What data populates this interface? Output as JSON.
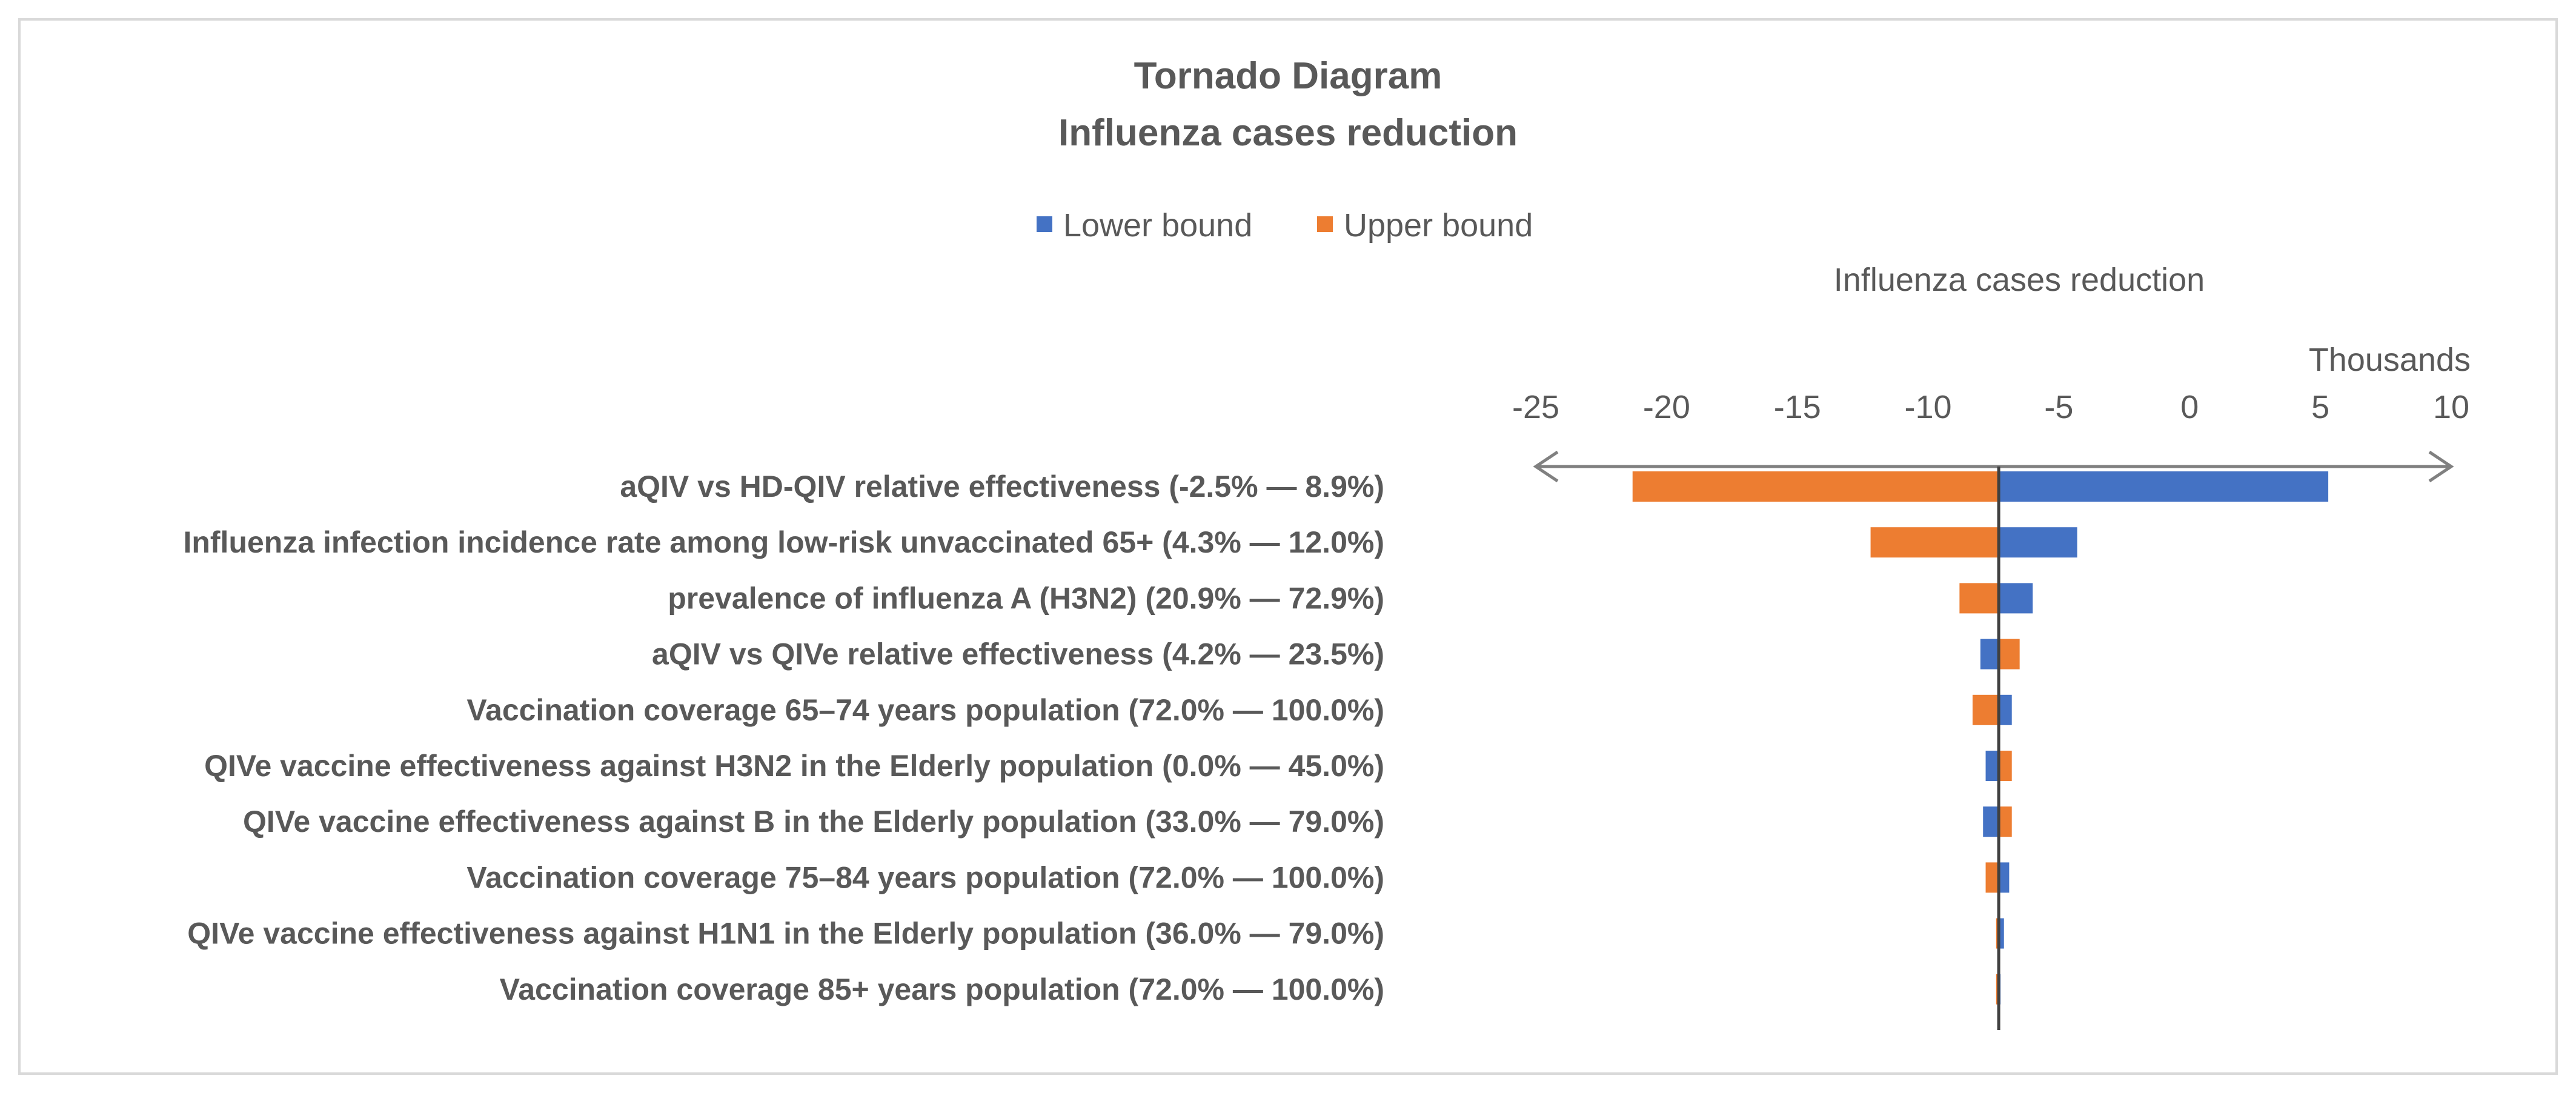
{
  "chart_data": {
    "type": "bar",
    "orientation": "horizontal",
    "subtype": "tornado",
    "title": "Tornado Diagram",
    "subtitle": "Influenza cases reduction",
    "axis_title": "Influenza cases reduction",
    "axis_units": "Thousands",
    "xlim": [
      -25,
      10
    ],
    "base_value": -7.3,
    "x_ticks": [
      -25,
      -20,
      -15,
      -10,
      -5,
      0,
      5,
      10
    ],
    "x_tick_labels": [
      "-25",
      "-20",
      "-15",
      "-10",
      "-5",
      "0",
      "5",
      "10"
    ],
    "legend": {
      "position": "top",
      "entries": [
        "Lower bound",
        "Upper bound"
      ]
    },
    "series": [
      {
        "name": "Lower bound",
        "color": "#4472C4",
        "values": [
          5.3,
          -4.3,
          -6.0,
          -8.0,
          -6.8,
          -7.8,
          -7.9,
          -6.9,
          -7.1,
          -7.3
        ]
      },
      {
        "name": "Upper bound",
        "color": "#ED7D31",
        "values": [
          -21.3,
          -12.2,
          -8.8,
          -6.5,
          -8.3,
          -6.8,
          -6.8,
          -7.8,
          -7.4,
          -7.4
        ]
      }
    ],
    "categories": [
      "aQIV vs HD-QIV relative effectiveness (-2.5% — 8.9%)",
      "Influenza infection incidence rate among low-risk unvaccinated 65+ (4.3% — 12.0%)",
      "prevalence of influenza A (H3N2) (20.9% — 72.9%)",
      "aQIV vs QIVe relative effectiveness (4.2% — 23.5%)",
      "Vaccination coverage 65–74 years population (72.0% — 100.0%)",
      "QIVe vaccine effectiveness against H3N2 in the Elderly population (0.0% — 45.0%)",
      "QIVe vaccine effectiveness against B in the Elderly population (33.0% — 79.0%)",
      "Vaccination coverage 75–84 years population (72.0% — 100.0%)",
      "QIVe vaccine effectiveness against H1N1 in the Elderly population (36.0% — 79.0%)",
      "Vaccination coverage 85+ years population (72.0% — 100.0%)"
    ],
    "colors": {
      "text": "#595959",
      "axis": "#808080",
      "baseline": "#404040",
      "frame": "#d9d9d9"
    }
  }
}
